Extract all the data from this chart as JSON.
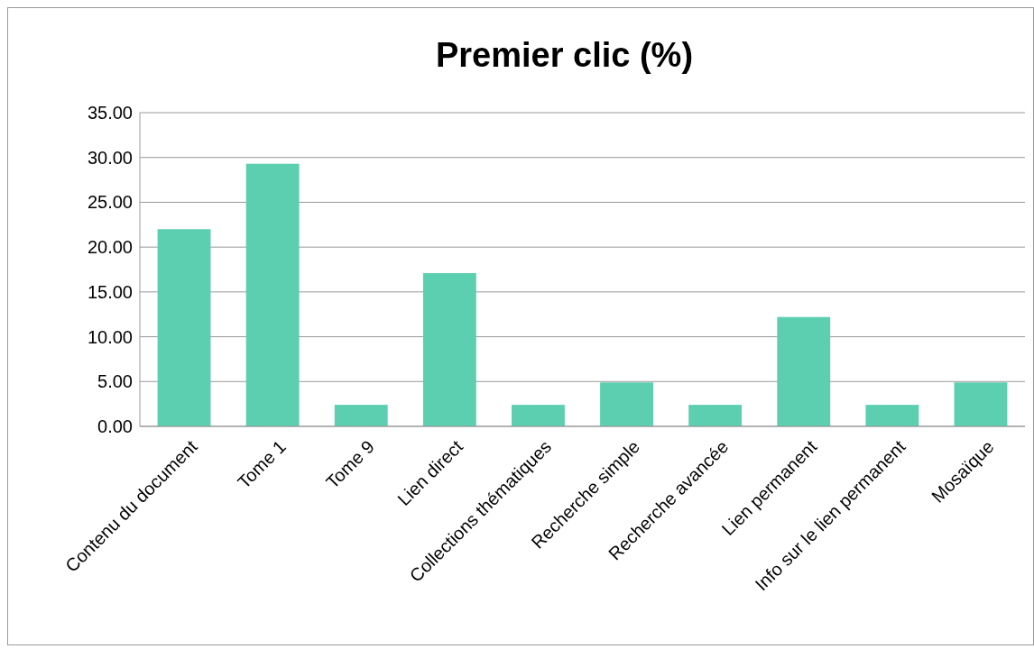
{
  "chart_data": {
    "type": "bar",
    "title": "Premier clic (%)",
    "categories": [
      "Contenu du document",
      "Tome 1",
      "Tome 9",
      "Lien direct",
      "Collections thématiques",
      "Recherche simple",
      "Recherche avancée",
      "Lien permanent",
      "Info sur le lien permanent",
      "Mosaïque"
    ],
    "values": [
      22.0,
      29.3,
      2.4,
      17.1,
      2.4,
      4.9,
      2.4,
      12.2,
      2.4,
      4.9
    ],
    "color": "#5ccfb0",
    "ylim": [
      0,
      35
    ],
    "yticks": [
      {
        "value": 0,
        "label": "0.00"
      },
      {
        "value": 5,
        "label": "5.00"
      },
      {
        "value": 10,
        "label": "10.00"
      },
      {
        "value": 15,
        "label": "15.00"
      },
      {
        "value": 20,
        "label": "20.00"
      },
      {
        "value": 25,
        "label": "25.00"
      },
      {
        "value": 30,
        "label": "30.00"
      },
      {
        "value": 35,
        "label": "35.00"
      }
    ],
    "grid": "y"
  }
}
